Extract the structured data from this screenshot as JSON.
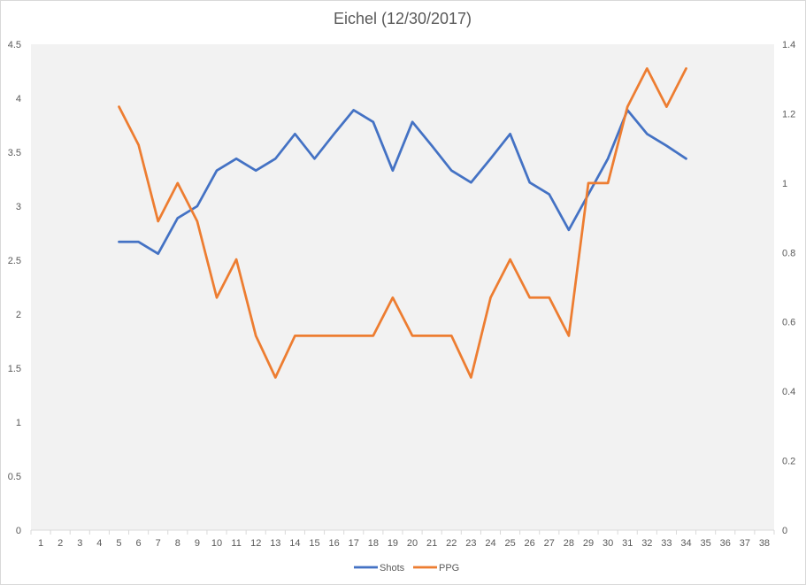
{
  "chart_data": {
    "type": "line",
    "title": "Eichel (12/30/2017)",
    "x": [
      1,
      2,
      3,
      4,
      5,
      6,
      7,
      8,
      9,
      10,
      11,
      12,
      13,
      14,
      15,
      16,
      17,
      18,
      19,
      20,
      21,
      22,
      23,
      24,
      25,
      26,
      27,
      28,
      29,
      30,
      31,
      32,
      33,
      34,
      35,
      36,
      37,
      38
    ],
    "x_tick_labels": [
      "1",
      "2",
      "3",
      "4",
      "5",
      "6",
      "7",
      "8",
      "9",
      "10",
      "11",
      "12",
      "13",
      "14",
      "15",
      "16",
      "17",
      "18",
      "19",
      "20",
      "21",
      "22",
      "23",
      "24",
      "25",
      "26",
      "27",
      "28",
      "29",
      "30",
      "31",
      "32",
      "33",
      "34",
      "35",
      "36",
      "37",
      "38"
    ],
    "y_left": {
      "min": 0,
      "max": 4.5,
      "ticks": [
        "0",
        "0.5",
        "1",
        "1.5",
        "2",
        "2.5",
        "3",
        "3.5",
        "4",
        "4.5"
      ]
    },
    "y_right": {
      "min": 0,
      "max": 1.4,
      "ticks": [
        "0",
        "0.2",
        "0.4",
        "0.6",
        "0.8",
        "1",
        "1.2",
        "1.4"
      ]
    },
    "grid": false,
    "legend_position": "bottom",
    "plot_background": "#f2f2f2",
    "series": [
      {
        "name": "Shots",
        "axis": "left",
        "color": "#4472c4",
        "x": [
          5,
          6,
          7,
          8,
          9,
          10,
          11,
          12,
          13,
          14,
          15,
          16,
          17,
          18,
          19,
          20,
          21,
          22,
          23,
          24,
          25,
          26,
          27,
          28,
          29,
          30,
          31,
          32,
          33,
          34
        ],
        "values": [
          2.67,
          2.67,
          2.56,
          2.89,
          3.0,
          3.33,
          3.44,
          3.33,
          3.44,
          3.67,
          3.44,
          3.67,
          3.89,
          3.78,
          3.33,
          3.78,
          3.56,
          3.33,
          3.22,
          3.44,
          3.67,
          3.22,
          3.11,
          2.78,
          3.11,
          3.44,
          3.89,
          3.67,
          3.56,
          3.44
        ]
      },
      {
        "name": "PPG",
        "axis": "right",
        "color": "#ed7d31",
        "x": [
          5,
          6,
          7,
          8,
          9,
          10,
          11,
          12,
          13,
          14,
          15,
          16,
          17,
          18,
          19,
          20,
          21,
          22,
          23,
          24,
          25,
          26,
          27,
          28,
          29,
          30,
          31,
          32,
          33,
          34
        ],
        "values": [
          1.22,
          1.11,
          0.89,
          1.0,
          0.89,
          0.67,
          0.78,
          0.56,
          0.44,
          0.56,
          0.56,
          0.56,
          0.56,
          0.56,
          0.67,
          0.56,
          0.56,
          0.56,
          0.44,
          0.67,
          0.78,
          0.67,
          0.67,
          0.56,
          1.0,
          1.0,
          1.22,
          1.33,
          1.22,
          1.33
        ]
      }
    ]
  }
}
